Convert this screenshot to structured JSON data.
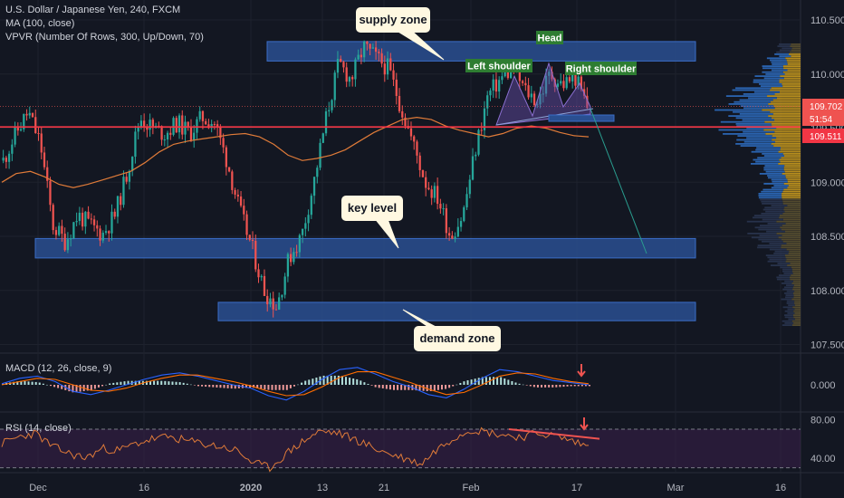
{
  "header": {
    "symbol": "U.S. Dollar / Japanese Yen, 240, FXCM",
    "ma": "MA (100, close)",
    "vpvr": "VPVR (Number Of Rows, 300, Up/Down, 70)"
  },
  "macd_label": "MACD (12, 26, close, 9)",
  "rsi_label": "RSI (14, close)",
  "chart_data": [
    {
      "type": "candlestick",
      "title": "U.S. Dollar / Japanese Yen, 240, FXCM",
      "x_ticks": [
        "Dec",
        "16",
        "2020",
        "13",
        "21",
        "Feb",
        "17",
        "Mar",
        "16"
      ],
      "y_ticks": [
        "110.500",
        "110.000",
        "109.500",
        "109.000",
        "108.500",
        "108.000",
        "107.500"
      ],
      "ylim": [
        107.35,
        110.75
      ],
      "price_tags": [
        {
          "label": "109.702",
          "value": 109.702,
          "color": "#ef5350"
        },
        {
          "label": "51:54",
          "value": 109.63,
          "color": "#ef5350"
        },
        {
          "label": "109.511",
          "value": 109.511,
          "color": "#f23645"
        }
      ],
      "horizontal_line": 109.511,
      "zones": [
        {
          "name": "supply zone",
          "x_from": "Jan 10",
          "x_to": "Feb 25",
          "low": 110.12,
          "high": 110.3
        },
        {
          "name": "key level",
          "x_from": "Nov 29",
          "x_to": "Feb 25",
          "low": 108.3,
          "high": 108.48
        },
        {
          "name": "demand zone",
          "x_from": "Jan 1",
          "x_to": "Feb 25",
          "low": 107.72,
          "high": 107.89
        }
      ],
      "annotations": [
        "supply zone",
        "key level",
        "demand zone",
        "Head",
        "Left shoulder",
        "Right shoulder"
      ],
      "ohlc_path": [
        109.2,
        109.45,
        109.65,
        109.35,
        108.6,
        108.45,
        108.7,
        108.6,
        108.52,
        108.7,
        109.1,
        109.6,
        109.5,
        109.45,
        109.55,
        109.45,
        109.6,
        109.55,
        109.2,
        108.75,
        108.4,
        108.0,
        107.85,
        108.3,
        108.5,
        109.0,
        109.6,
        110.1,
        109.95,
        110.25,
        110.15,
        110.05,
        109.7,
        109.35,
        109.0,
        108.85,
        108.5,
        108.7,
        109.3,
        109.8,
        109.95,
        110.05,
        109.85,
        109.75,
        110.0,
        109.9,
        109.98,
        109.7
      ],
      "ma_100": [
        109.0,
        109.08,
        109.1,
        109.05,
        108.98,
        108.95,
        108.98,
        109.02,
        109.06,
        109.1,
        109.18,
        109.28,
        109.35,
        109.38,
        109.4,
        109.42,
        109.44,
        109.45,
        109.42,
        109.35,
        109.25,
        109.2,
        109.22,
        109.25,
        109.3,
        109.38,
        109.46,
        109.52,
        109.58,
        109.6,
        109.58,
        109.52,
        109.48,
        109.45,
        109.42,
        109.45,
        109.5,
        109.52,
        109.5,
        109.46,
        109.43,
        109.42
      ],
      "forecast": {
        "from": 109.7,
        "to": 108.45
      }
    },
    {
      "type": "line",
      "title": "MACD (12, 26, close, 9)",
      "y_ticks": [
        "0.000"
      ],
      "series": [
        {
          "name": "MACD",
          "values": [
            0.01,
            0.06,
            0.08,
            0.03,
            -0.06,
            -0.09,
            -0.05,
            0.0,
            0.05,
            0.09,
            0.11,
            0.08,
            0.04,
            0.0,
            -0.03,
            -0.1,
            -0.14,
            -0.06,
            0.05,
            0.14,
            0.16,
            0.1,
            0.03,
            -0.02,
            -0.09,
            -0.12,
            -0.04,
            0.06,
            0.14,
            0.12,
            0.08,
            0.04,
            0.02,
            0.0
          ]
        },
        {
          "name": "Signal",
          "values": [
            0.0,
            0.03,
            0.06,
            0.05,
            0.0,
            -0.05,
            -0.06,
            -0.03,
            0.02,
            0.06,
            0.09,
            0.09,
            0.06,
            0.03,
            -0.01,
            -0.06,
            -0.1,
            -0.09,
            -0.02,
            0.07,
            0.12,
            0.12,
            0.07,
            0.02,
            -0.04,
            -0.09,
            -0.07,
            0.0,
            0.08,
            0.11,
            0.1,
            0.06,
            0.03,
            0.01
          ]
        }
      ]
    },
    {
      "type": "line",
      "title": "RSI (14, close)",
      "y_ticks": [
        "80.00",
        "40.00"
      ],
      "ylim": [
        25,
        85
      ],
      "band": [
        30,
        70
      ],
      "values": [
        55,
        62,
        66,
        52,
        45,
        40,
        50,
        48,
        55,
        60,
        62,
        58,
        55,
        52,
        48,
        35,
        30,
        45,
        58,
        68,
        66,
        60,
        52,
        45,
        40,
        34,
        50,
        62,
        70,
        67,
        64,
        62,
        66,
        63,
        58,
        52
      ],
      "divergence_line": [
        70,
        60
      ]
    }
  ]
}
